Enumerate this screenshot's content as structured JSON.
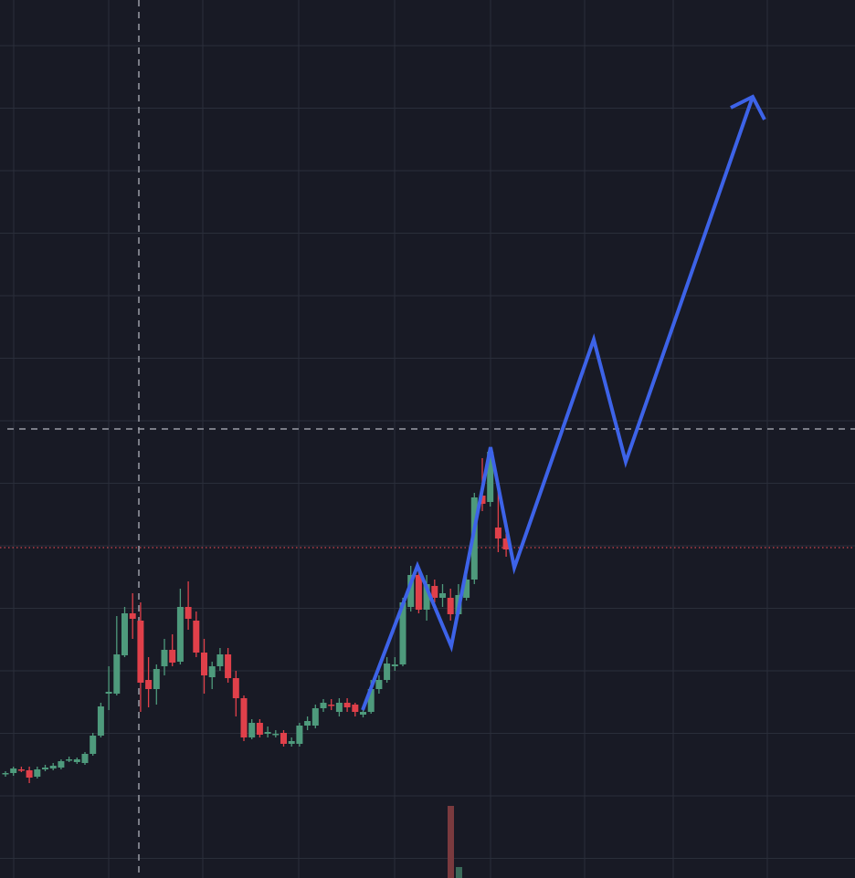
{
  "chart_data": {
    "type": "candlestick",
    "ylim": [
      0,
      962
    ],
    "grid": true,
    "up_color": "#4e9a7c",
    "down_color": "#e0404a",
    "series": {
      "open": [
        114,
        115,
        119,
        118,
        111,
        119,
        120,
        121,
        129,
        127,
        126,
        136,
        156,
        202,
        202,
        244,
        290,
        282,
        217,
        207,
        232,
        250,
        237,
        297,
        282,
        247,
        220,
        232,
        245,
        219,
        197,
        154,
        170,
        158,
        157,
        159,
        147,
        147,
        167,
        167,
        186,
        190,
        182,
        192,
        190,
        179,
        182,
        207,
        217,
        232,
        234,
        297,
        332,
        294,
        320,
        307,
        307,
        289,
        307,
        327,
        419,
        412,
        384,
        372
      ],
      "high": [
        117,
        122,
        122,
        122,
        122,
        124,
        126,
        130,
        133,
        132,
        138,
        159,
        192,
        232,
        287,
        297,
        312,
        302,
        242,
        234,
        262,
        267,
        317,
        325,
        292,
        262,
        237,
        252,
        252,
        227,
        200,
        174,
        174,
        166,
        162,
        162,
        154,
        170,
        177,
        190,
        196,
        196,
        197,
        197,
        192,
        185,
        217,
        222,
        242,
        242,
        307,
        342,
        342,
        332,
        327,
        322,
        317,
        322,
        342,
        422,
        460,
        472,
        427,
        377
      ],
      "low": [
        111,
        112,
        116,
        104,
        109,
        117,
        118,
        119,
        127,
        125,
        124,
        134,
        154,
        184,
        200,
        242,
        262,
        182,
        187,
        190,
        222,
        232,
        234,
        272,
        242,
        202,
        207,
        227,
        214,
        177,
        150,
        152,
        154,
        154,
        154,
        144,
        144,
        144,
        162,
        164,
        182,
        184,
        177,
        182,
        177,
        176,
        180,
        202,
        214,
        227,
        232,
        292,
        290,
        282,
        302,
        297,
        282,
        287,
        304,
        322,
        402,
        407,
        357,
        352
      ],
      "close": [
        115,
        120,
        118,
        110,
        119,
        121,
        123,
        128,
        130,
        130,
        136,
        156,
        188,
        204,
        245,
        290,
        284,
        214,
        207,
        229,
        250,
        236,
        297,
        284,
        247,
        222,
        232,
        245,
        219,
        197,
        154,
        170,
        157,
        160,
        158,
        147,
        150,
        167,
        172,
        186,
        192,
        189,
        192,
        187,
        182,
        182,
        207,
        217,
        235,
        234,
        302,
        332,
        294,
        322,
        307,
        312,
        289,
        310,
        327,
        417,
        410,
        467,
        372,
        360
      ]
    }
  }
}
